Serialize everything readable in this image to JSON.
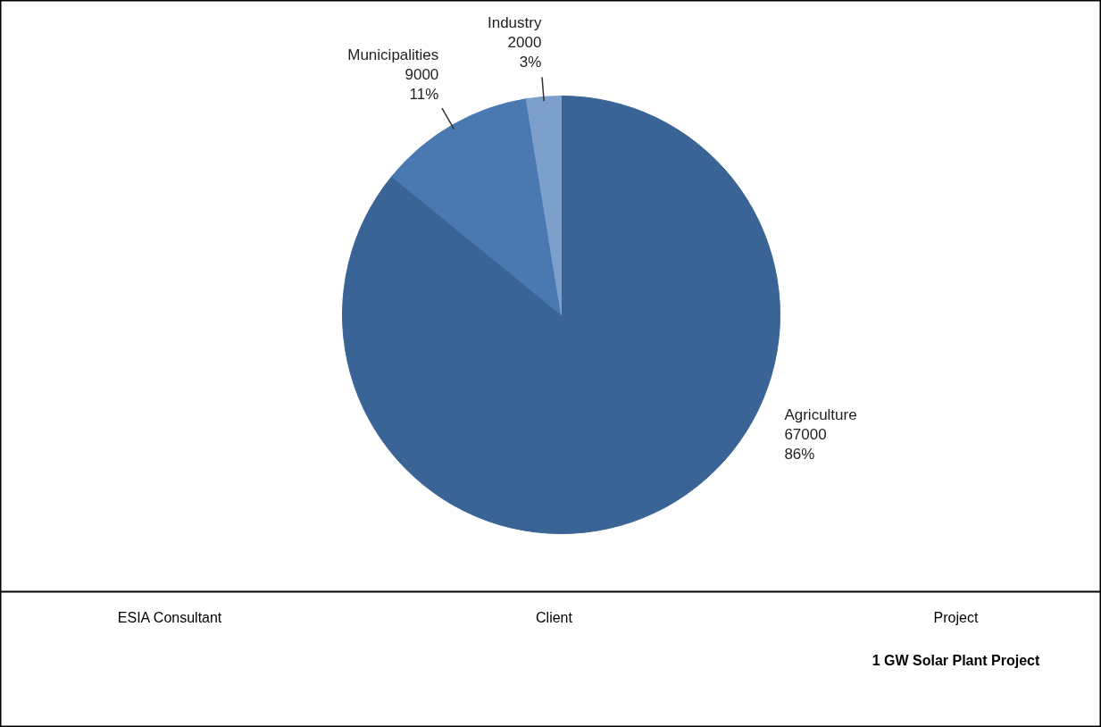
{
  "chart_data": {
    "type": "pie",
    "categories": [
      "Agriculture",
      "Municipalities",
      "Industry"
    ],
    "values": [
      67000,
      9000,
      2000
    ],
    "colors": [
      "#3a6496",
      "#4a78b0",
      "#7d9fcc"
    ],
    "value_labels": [
      "67000\n86%",
      "9000\n11%",
      "2000\n3%"
    ],
    "annotations": [
      "ESIA Consultant",
      "Client",
      "Project",
      "1 GW Solar Plant Project"
    ]
  }
}
